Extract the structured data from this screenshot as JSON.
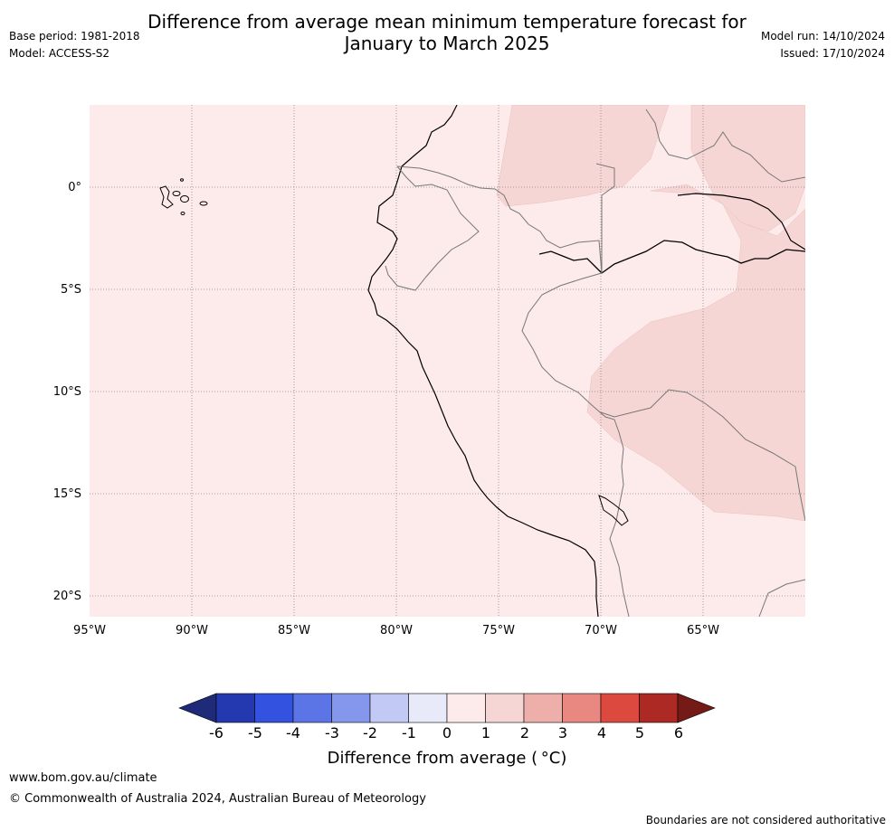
{
  "title": {
    "line1": "Difference from average mean minimum temperature forecast for",
    "line2": "January to March 2025"
  },
  "meta": {
    "base_period": "Base period: 1981-2018",
    "model": "Model: ACCESS-S2",
    "model_run": "Model run: 14/10/2024",
    "issued": "Issued: 17/10/2024"
  },
  "map": {
    "lat_labels": [
      "0°",
      "5°S",
      "10°S",
      "15°S",
      "20°S"
    ],
    "lon_labels": [
      "95°W",
      "90°W",
      "85°W",
      "80°W",
      "75°W",
      "70°W",
      "65°W"
    ],
    "regions": [
      {
        "name": "background",
        "range": "0 to 1",
        "color": "#fcebea"
      },
      {
        "name": "warm-anomaly",
        "range": "1 to 2",
        "color": "#f6d6d4"
      }
    ]
  },
  "colorbar": {
    "ticks": [
      "-6",
      "-5",
      "-4",
      "-3",
      "-2",
      "-1",
      "0",
      "1",
      "2",
      "3",
      "4",
      "5",
      "6"
    ],
    "colors": [
      "#1f2a78",
      "#2439b0",
      "#3352e0",
      "#5b75e6",
      "#8497ec",
      "#c2c9f4",
      "#e8eafa",
      "#fcebea",
      "#f6d6d4",
      "#eeaeaa",
      "#e88880",
      "#dc4a3f",
      "#ad2923",
      "#751b17"
    ],
    "label": "Difference from average ( °C)"
  },
  "footer": {
    "url": "www.bom.gov.au/climate",
    "copyright": "© Commonwealth of Australia 2024, Australian Bureau of Meteorology",
    "disclaimer": "Boundaries are not considered authoritative"
  }
}
